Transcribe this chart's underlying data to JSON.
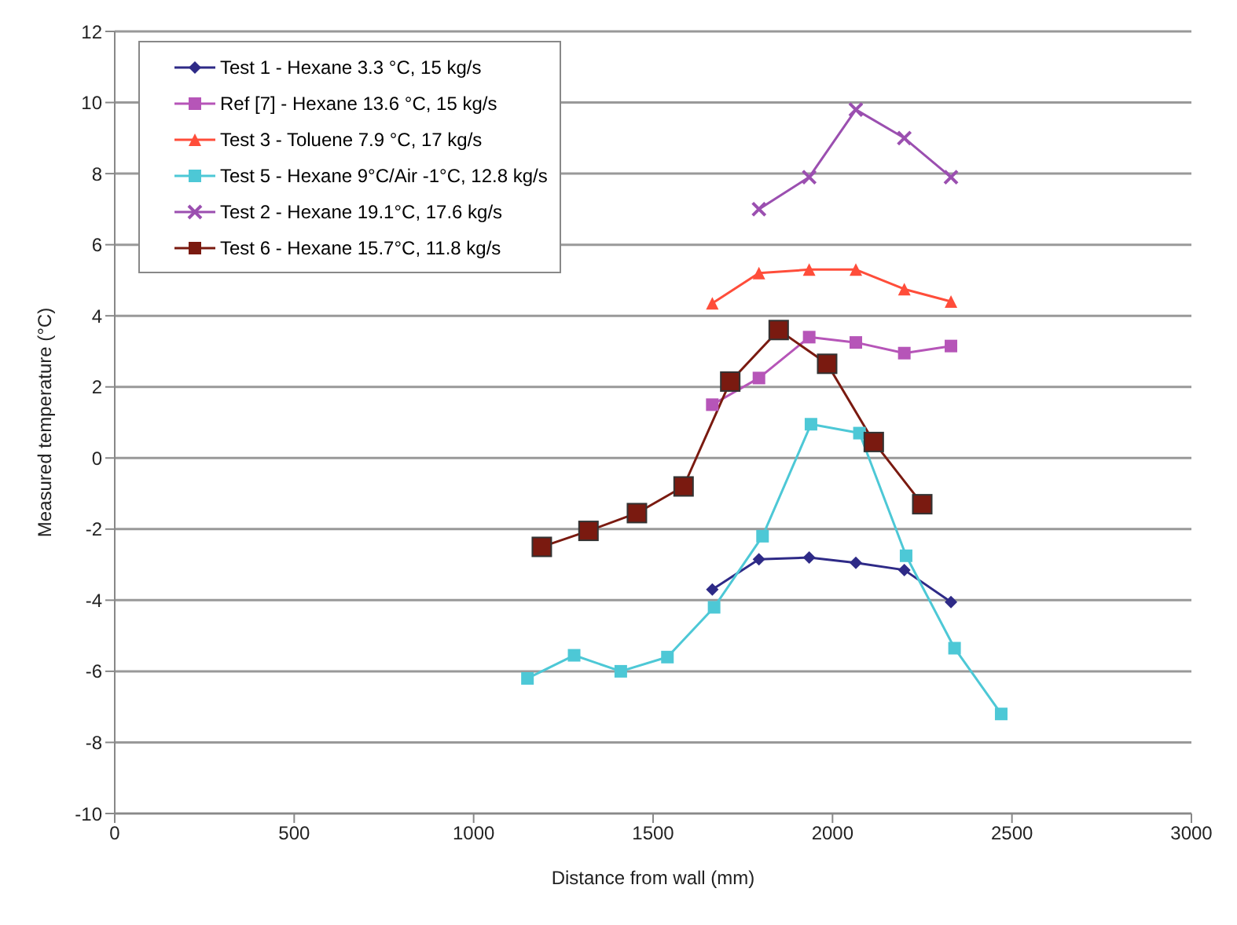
{
  "chart_data": {
    "type": "line",
    "xlabel": "Distance from wall  (mm)",
    "ylabel": "Measured temperature (°C)",
    "xlim": [
      0,
      3000
    ],
    "xticks": [
      0,
      500,
      1000,
      1500,
      2000,
      2500,
      3000
    ],
    "ylim": [
      -10,
      12
    ],
    "yticks": [
      -10,
      -8,
      -6,
      -4,
      -2,
      0,
      2,
      4,
      6,
      8,
      10,
      12
    ],
    "grid": "y",
    "legend": "top left",
    "line_style": "solid",
    "series": [
      {
        "name": "Test 1 - Hexane 3.3 °C, 15 kg/s",
        "color": "#2e2a87",
        "marker": "diamond",
        "x": [
          1665,
          1795,
          1935,
          2065,
          2200,
          2330
        ],
        "values": [
          -3.7,
          -2.85,
          -2.8,
          -2.95,
          -3.15,
          -4.05
        ]
      },
      {
        "name": "Ref [7] - Hexane 13.6 °C, 15 kg/s",
        "color": "#b655b8",
        "marker": "square",
        "x": [
          1665,
          1795,
          1935,
          2065,
          2200,
          2330
        ],
        "values": [
          1.5,
          2.25,
          3.4,
          3.25,
          2.95,
          3.15
        ]
      },
      {
        "name": "Test 3 - Toluene 7.9 °C, 17 kg/s",
        "color": "#ff4d3a",
        "marker": "triangle",
        "x": [
          1665,
          1795,
          1935,
          2065,
          2200,
          2330
        ],
        "values": [
          4.35,
          5.2,
          5.3,
          5.3,
          4.75,
          4.4
        ]
      },
      {
        "name": "Test 5 - Hexane 9°C/Air -1°C, 12.8 kg/s",
        "color": "#4dc8d6",
        "marker": "square",
        "x": [
          1150,
          1280,
          1410,
          1540,
          1670,
          1805,
          1940,
          2075,
          2205,
          2340,
          2470
        ],
        "values": [
          -6.2,
          -5.55,
          -6.0,
          -5.6,
          -4.2,
          -2.2,
          0.95,
          0.7,
          -2.75,
          -5.35,
          -7.2
        ]
      },
      {
        "name": "Test 2 - Hexane 19.1°C, 17.6 kg/s",
        "color": "#9b4fb0",
        "marker": "cross",
        "x": [
          1795,
          1935,
          2065,
          2200,
          2330
        ],
        "values": [
          7.0,
          7.9,
          9.8,
          9.0,
          7.9
        ]
      },
      {
        "name": "Test 6 - Hexane 15.7°C, 11.8 kg/s",
        "color": "#7a1a10",
        "marker": "square",
        "x": [
          1190,
          1320,
          1455,
          1585,
          1715,
          1850,
          1985,
          2115,
          2250
        ],
        "values": [
          -2.5,
          -2.05,
          -1.55,
          -0.8,
          2.15,
          3.6,
          2.65,
          0.45,
          -1.3
        ]
      }
    ]
  }
}
